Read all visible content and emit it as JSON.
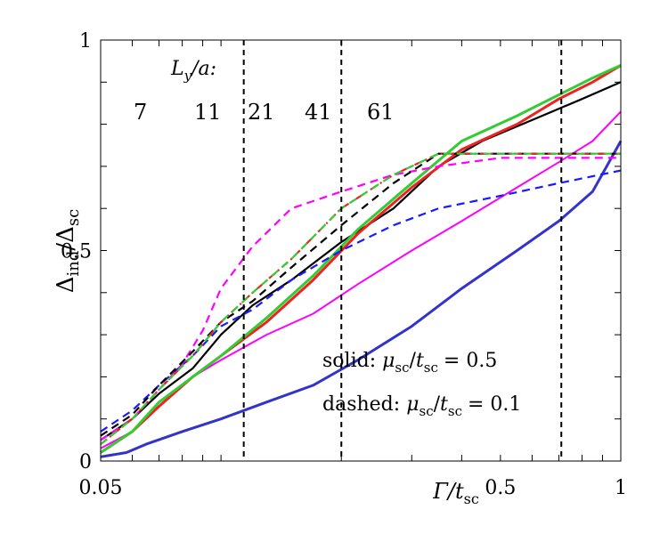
{
  "chart_data": {
    "type": "line",
    "title": "",
    "xlabel": "Γ/t",
    "xlabel_sub": "sc",
    "ylabel": "Δ",
    "ylabel_sub": "ind",
    "ylabel_den": "Δ",
    "ylabel_den_sub": "sc",
    "x_scale": "log",
    "xlim": [
      0.05,
      1.0
    ],
    "ylim": [
      0,
      1
    ],
    "x_ticks": [
      {
        "value": 0.05,
        "label": "0.05"
      },
      {
        "value": 0.5,
        "label": "0.5"
      },
      {
        "value": 1.0,
        "label": "1"
      }
    ],
    "y_ticks": [
      {
        "value": 0,
        "label": "0"
      },
      {
        "value": 0.5,
        "label": "0.5"
      },
      {
        "value": 1,
        "label": "1"
      }
    ],
    "vlines": [
      0.114,
      0.2,
      0.71
    ],
    "legend_title": "L",
    "legend_title_sub": "y",
    "legend_title_tail": "/a:",
    "legend": [
      {
        "label": "7",
        "color": "#1a1aff"
      },
      {
        "label": "11",
        "color": "#ff00ff"
      },
      {
        "label": "21",
        "color": "#000000"
      },
      {
        "label": "41",
        "color": "#ff0000"
      },
      {
        "label": "61",
        "color": "#33cc33"
      }
    ],
    "annotations": {
      "solid_prefix": "solid:",
      "dashed_prefix": "dashed:",
      "mu": "μ",
      "mu_sub": "sc",
      "t": "t",
      "t_sub": "sc",
      "solid_value": "= 0.5",
      "dashed_value": "= 0.1"
    },
    "series": [
      {
        "name": "7 solid",
        "color": "#3333cc",
        "style": "solid",
        "width": 3,
        "x": [
          0.05,
          0.058,
          0.065,
          0.08,
          0.1,
          0.13,
          0.17,
          0.22,
          0.3,
          0.4,
          0.55,
          0.7,
          0.85,
          1.0
        ],
        "y": [
          0.01,
          0.02,
          0.04,
          0.07,
          0.1,
          0.14,
          0.18,
          0.24,
          0.32,
          0.41,
          0.5,
          0.57,
          0.64,
          0.76
        ]
      },
      {
        "name": "11 solid",
        "color": "#ff00ff",
        "style": "solid",
        "width": 2,
        "x": [
          0.05,
          0.06,
          0.07,
          0.085,
          0.1,
          0.13,
          0.17,
          0.22,
          0.3,
          0.4,
          0.55,
          0.7,
          0.85,
          1.0
        ],
        "y": [
          0.03,
          0.07,
          0.13,
          0.2,
          0.24,
          0.3,
          0.35,
          0.42,
          0.5,
          0.57,
          0.65,
          0.71,
          0.76,
          0.83
        ]
      },
      {
        "name": "21 solid",
        "color": "#000000",
        "style": "solid",
        "width": 2.2,
        "x": [
          0.05,
          0.06,
          0.07,
          0.085,
          0.1,
          0.12,
          0.15,
          0.2,
          0.27,
          0.35,
          0.45,
          0.6,
          0.8,
          1.0
        ],
        "y": [
          0.05,
          0.1,
          0.16,
          0.22,
          0.3,
          0.37,
          0.43,
          0.52,
          0.6,
          0.7,
          0.76,
          0.81,
          0.86,
          0.9
        ]
      },
      {
        "name": "41 solid",
        "color": "#ee2222",
        "style": "solid",
        "width": 3,
        "x": [
          0.05,
          0.06,
          0.07,
          0.085,
          0.1,
          0.13,
          0.17,
          0.22,
          0.3,
          0.4,
          0.55,
          0.7,
          0.85,
          1.0
        ],
        "y": [
          0.02,
          0.07,
          0.13,
          0.2,
          0.25,
          0.33,
          0.43,
          0.54,
          0.65,
          0.74,
          0.8,
          0.86,
          0.9,
          0.94
        ]
      },
      {
        "name": "61 solid",
        "color": "#33cc33",
        "style": "solid",
        "width": 3,
        "x": [
          0.05,
          0.06,
          0.07,
          0.085,
          0.1,
          0.13,
          0.17,
          0.22,
          0.3,
          0.4,
          0.55,
          0.7,
          0.85,
          1.0
        ],
        "y": [
          0.02,
          0.07,
          0.14,
          0.2,
          0.25,
          0.34,
          0.44,
          0.55,
          0.66,
          0.76,
          0.82,
          0.87,
          0.91,
          0.94
        ]
      },
      {
        "name": "7 dashed",
        "color": "#1a1aff",
        "style": "dashed",
        "width": 2.2,
        "x": [
          0.05,
          0.06,
          0.07,
          0.085,
          0.1,
          0.12,
          0.15,
          0.2,
          0.27,
          0.35,
          0.5,
          0.7,
          1.0
        ],
        "y": [
          0.07,
          0.12,
          0.18,
          0.25,
          0.32,
          0.36,
          0.43,
          0.5,
          0.56,
          0.6,
          0.63,
          0.66,
          0.69
        ]
      },
      {
        "name": "11 dashed",
        "color": "#ff00ff",
        "style": "dashed",
        "width": 2.2,
        "x": [
          0.05,
          0.06,
          0.07,
          0.08,
          0.09,
          0.1,
          0.12,
          0.15,
          0.2,
          0.27,
          0.35,
          0.5,
          0.7,
          1.0
        ],
        "y": [
          0.05,
          0.1,
          0.17,
          0.23,
          0.31,
          0.41,
          0.51,
          0.6,
          0.64,
          0.68,
          0.7,
          0.72,
          0.72,
          0.72
        ]
      },
      {
        "name": "21 dashed",
        "color": "#000000",
        "style": "dashed",
        "width": 2.2,
        "x": [
          0.05,
          0.06,
          0.07,
          0.085,
          0.1,
          0.12,
          0.15,
          0.2,
          0.27,
          0.35,
          0.5,
          0.7,
          1.0
        ],
        "y": [
          0.06,
          0.11,
          0.18,
          0.26,
          0.33,
          0.38,
          0.46,
          0.56,
          0.66,
          0.73,
          0.73,
          0.73,
          0.73
        ]
      },
      {
        "name": "41 dashed",
        "color": "#ee2222",
        "style": "dashdot",
        "width": 2.2,
        "x": [
          0.05,
          0.06,
          0.07,
          0.085,
          0.1,
          0.12,
          0.15,
          0.2,
          0.27,
          0.35,
          0.5,
          0.7,
          1.0
        ],
        "y": [
          0.04,
          0.1,
          0.17,
          0.25,
          0.33,
          0.4,
          0.48,
          0.6,
          0.68,
          0.73,
          0.73,
          0.73,
          0.73
        ]
      },
      {
        "name": "61 dashed",
        "color": "#33cc33",
        "style": "dashed",
        "width": 2.2,
        "x": [
          0.05,
          0.06,
          0.07,
          0.085,
          0.1,
          0.12,
          0.15,
          0.2,
          0.27,
          0.35,
          0.5,
          0.7,
          1.0
        ],
        "y": [
          0.04,
          0.1,
          0.17,
          0.25,
          0.33,
          0.4,
          0.48,
          0.6,
          0.68,
          0.73,
          0.73,
          0.73,
          0.73
        ]
      }
    ]
  }
}
